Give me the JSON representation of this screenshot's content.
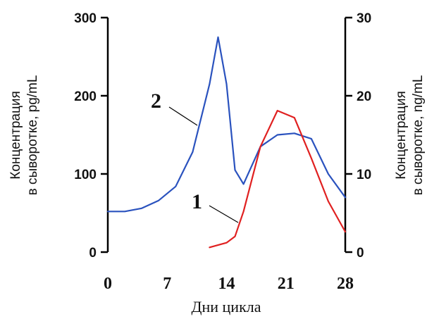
{
  "chart_data": {
    "type": "line",
    "xlabel": "Дни цикла",
    "ylabel_left_line1": "Концентрация",
    "ylabel_left_line2": "в сыворотке, pg/mL",
    "ylabel_right_line1": "Концентрация",
    "ylabel_right_line2": "в сыворотке, ng/mL",
    "xlim": [
      0,
      28
    ],
    "ylim_left": [
      0,
      300
    ],
    "ylim_right": [
      0,
      30
    ],
    "x_ticks": [
      "0",
      "7",
      "14",
      "21",
      "28"
    ],
    "y_left_ticks": [
      "0",
      "100",
      "200",
      "300"
    ],
    "y_right_ticks": [
      "0",
      "10",
      "20",
      "30"
    ],
    "grid": false,
    "series": [
      {
        "name": "2",
        "axis": "left",
        "color": "#2a52be",
        "x": [
          0,
          2,
          4,
          6,
          8,
          10,
          12,
          13,
          14,
          15,
          16,
          18,
          20,
          22,
          24,
          26,
          28
        ],
        "y": [
          52,
          52,
          56,
          66,
          84,
          128,
          215,
          275,
          215,
          105,
          87,
          135,
          150,
          152,
          145,
          100,
          70
        ]
      },
      {
        "name": "1",
        "axis": "right",
        "color": "#e02020",
        "x": [
          12,
          14,
          15,
          16,
          18,
          20,
          22,
          24,
          26,
          28
        ],
        "y": [
          0.6,
          1.2,
          2,
          5.2,
          13.5,
          18.1,
          17.2,
          12,
          6.5,
          2.6
        ]
      }
    ]
  }
}
